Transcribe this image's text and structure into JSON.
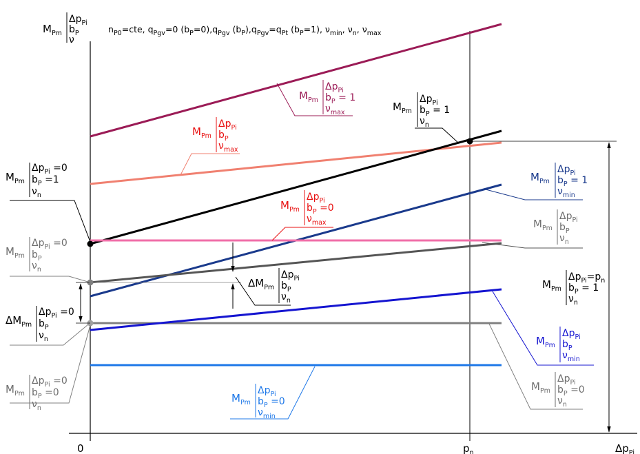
{
  "axes": {
    "y_axis_label": {
      "main": "M",
      "main_sub": "Pm",
      "l1": "Δp",
      "l1_sub": "Pi",
      "l2": "b",
      "l2_sub": "P",
      "l3": "ν"
    },
    "x_axis_label": {
      "main": "Δp",
      "sub": "Pi"
    },
    "origin_label": "0",
    "pn_label": {
      "main": "p",
      "sub": "n"
    }
  },
  "header": {
    "t1": "n",
    "t1s": "P0",
    "t2": "=cte, q",
    "t2s": "Pgv",
    "t3": "=0 (b",
    "t3s": "P",
    "t4": "=0),q",
    "t4s": "Pgv",
    "t5": " (b",
    "t5s": "P",
    "t6": "),q",
    "t6s": "Pgv",
    "t7": "=q",
    "t7s": "Pt",
    "t8": " (b",
    "t8s": "P",
    "t9": "=1), ν",
    "t9s": "min",
    "t10": ", ν",
    "t10s": "n",
    "t11": ", ν",
    "t11s": "max"
  },
  "colors": {
    "purple": "#9b1b56",
    "salmon": "#f08070",
    "black": "#000000",
    "navy": "#1a3a8c",
    "pink": "#f06fa8",
    "darkgray": "#555555",
    "midgray": "#808080",
    "blue": "#1515d0",
    "lightblue": "#1e78e8",
    "red": "#e81010",
    "label_gray": "#6e6e6e"
  },
  "labels": {
    "purple_max": {
      "m": "M",
      "ms": "Pm",
      "l1": "Δp",
      "l1s": "Pi",
      "l2": "b",
      "l2s": "P",
      "l2r": " = 1",
      "l3": "ν",
      "l3s": "max"
    },
    "salmon_max": {
      "m": "M",
      "ms": "Pm",
      "l1": "Δp",
      "l1s": "Pi",
      "l2": "b",
      "l2s": "P",
      "l3": "ν",
      "l3s": "max"
    },
    "black_n": {
      "m": "M",
      "ms": "Pm",
      "l1": "Δp",
      "l1s": "Pi",
      "l2": "b",
      "l2s": "P",
      "l2r": " = 1",
      "l3": "ν",
      "l3s": "n"
    },
    "left_black": {
      "m": "M",
      "ms": "Pm",
      "l1": "Δp",
      "l1s": "Pi",
      "l1r": " =0",
      "l2": "b",
      "l2s": "P",
      "l2r": " =1",
      "l3": "ν",
      "l3s": "n"
    },
    "navy_min": {
      "m": "M",
      "ms": "Pm",
      "l1": "Δp",
      "l1s": "Pi",
      "l2": "b",
      "l2s": "P",
      "l2r": " = 1",
      "l3": "ν",
      "l3s": "min"
    },
    "red_max0": {
      "m": "M",
      "ms": "Pm",
      "l1": "Δp",
      "l1s": "Pi",
      "l2": "b",
      "l2s": "P",
      "l2r": " =0",
      "l3": "ν",
      "l3s": "max"
    },
    "gray_right": {
      "m": "M",
      "ms": "Pm",
      "l1": "Δp",
      "l1s": "Pi",
      "l2": "b",
      "l2s": "P",
      "l3": "ν",
      "l3s": "n"
    },
    "left_gray": {
      "m": "M",
      "ms": "Pm",
      "l1": "Δp",
      "l1s": "Pi",
      "l1r": " =0",
      "l2": "b",
      "l2s": "P",
      "l3": "ν",
      "l3s": "n"
    },
    "delta_mid": {
      "m": "ΔM",
      "ms": "Pm",
      "l1": "Δp",
      "l1s": "Pi",
      "l2": "b",
      "l2s": "P",
      "l3": "ν",
      "l3s": "n"
    },
    "right_pn": {
      "m": "M",
      "ms": "Pm",
      "l1": "Δp",
      "l1s": "Pi",
      "l1r": "=p",
      "l1rs": "n",
      "l2": "b",
      "l2s": "P",
      "l2r": " = 1",
      "l3": "ν",
      "l3s": "n"
    },
    "left_delta": {
      "m": "ΔM",
      "ms": "Pm",
      "l1": "Δp",
      "l1s": "Pi",
      "l1r": " =0",
      "l2": "b",
      "l2s": "P",
      "l3": "ν",
      "l3s": "n"
    },
    "blue_min": {
      "m": "M",
      "ms": "Pm",
      "l1": "Δp",
      "l1s": "Pi",
      "l2": "b",
      "l2s": "P",
      "l3": "ν",
      "l3s": "min"
    },
    "left_gray0": {
      "m": "M",
      "ms": "Pm",
      "l1": "Δp",
      "l1s": "Pi",
      "l1r": " =0",
      "l2": "b",
      "l2s": "P",
      "l2r": " =0",
      "l3": "ν",
      "l3s": "n"
    },
    "lightblue_min": {
      "m": "M",
      "ms": "Pm",
      "l1": "Δp",
      "l1s": "Pi",
      "l2": "b",
      "l2s": "P",
      "l2r": " =0",
      "l3": "ν",
      "l3s": "min"
    },
    "gray_right0": {
      "m": "M",
      "ms": "Pm",
      "l1": "Δp",
      "l1s": "Pi",
      "l2": "b",
      "l2s": "P",
      "l2r": " =0",
      "l3": "ν",
      "l3s": "n"
    }
  }
}
